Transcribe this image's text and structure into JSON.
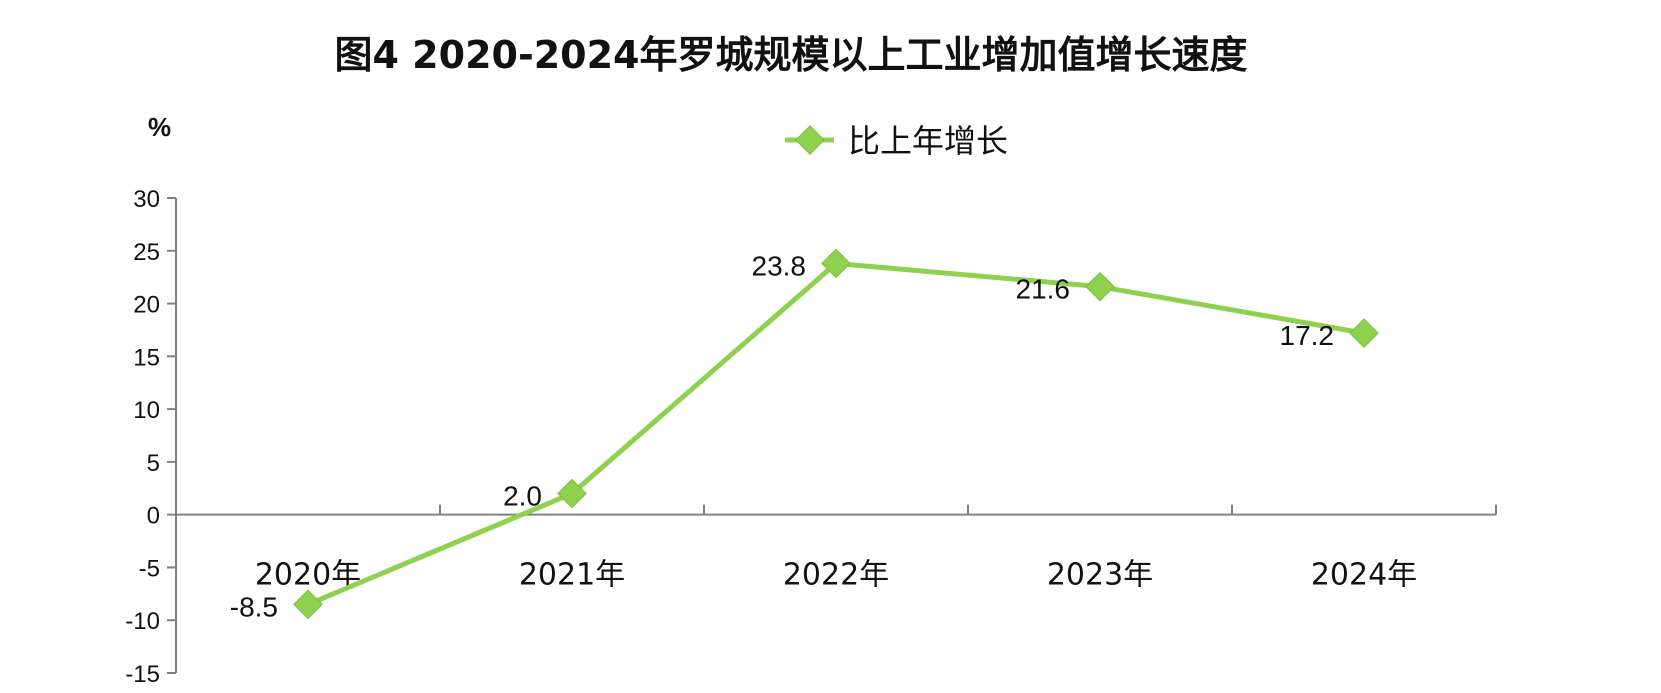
{
  "chart_data": {
    "type": "line",
    "title": "图4   2020-2024年罗城规模以上工业增加值增长速度",
    "ylabel": "%",
    "categories": [
      "2020年",
      "2021年",
      "2022年",
      "2023年",
      "2024年"
    ],
    "series": [
      {
        "name": "比上年增长",
        "values": [
          -8.5,
          2.0,
          23.8,
          21.6,
          17.2
        ],
        "value_labels": [
          "-8.5",
          "2.0",
          "23.8",
          "21.6",
          "17.2"
        ],
        "color": "#8ed14f"
      }
    ],
    "ylim": [
      -15,
      30
    ],
    "yticks": [
      30,
      25,
      20,
      15,
      10,
      5,
      0,
      -5,
      -10,
      -15
    ],
    "ytick_labels": [
      "30",
      "25",
      "20",
      "15",
      "10",
      "5",
      "0",
      "-5",
      "-10",
      "-15"
    ],
    "legend_position": "top-center",
    "grid": false
  }
}
